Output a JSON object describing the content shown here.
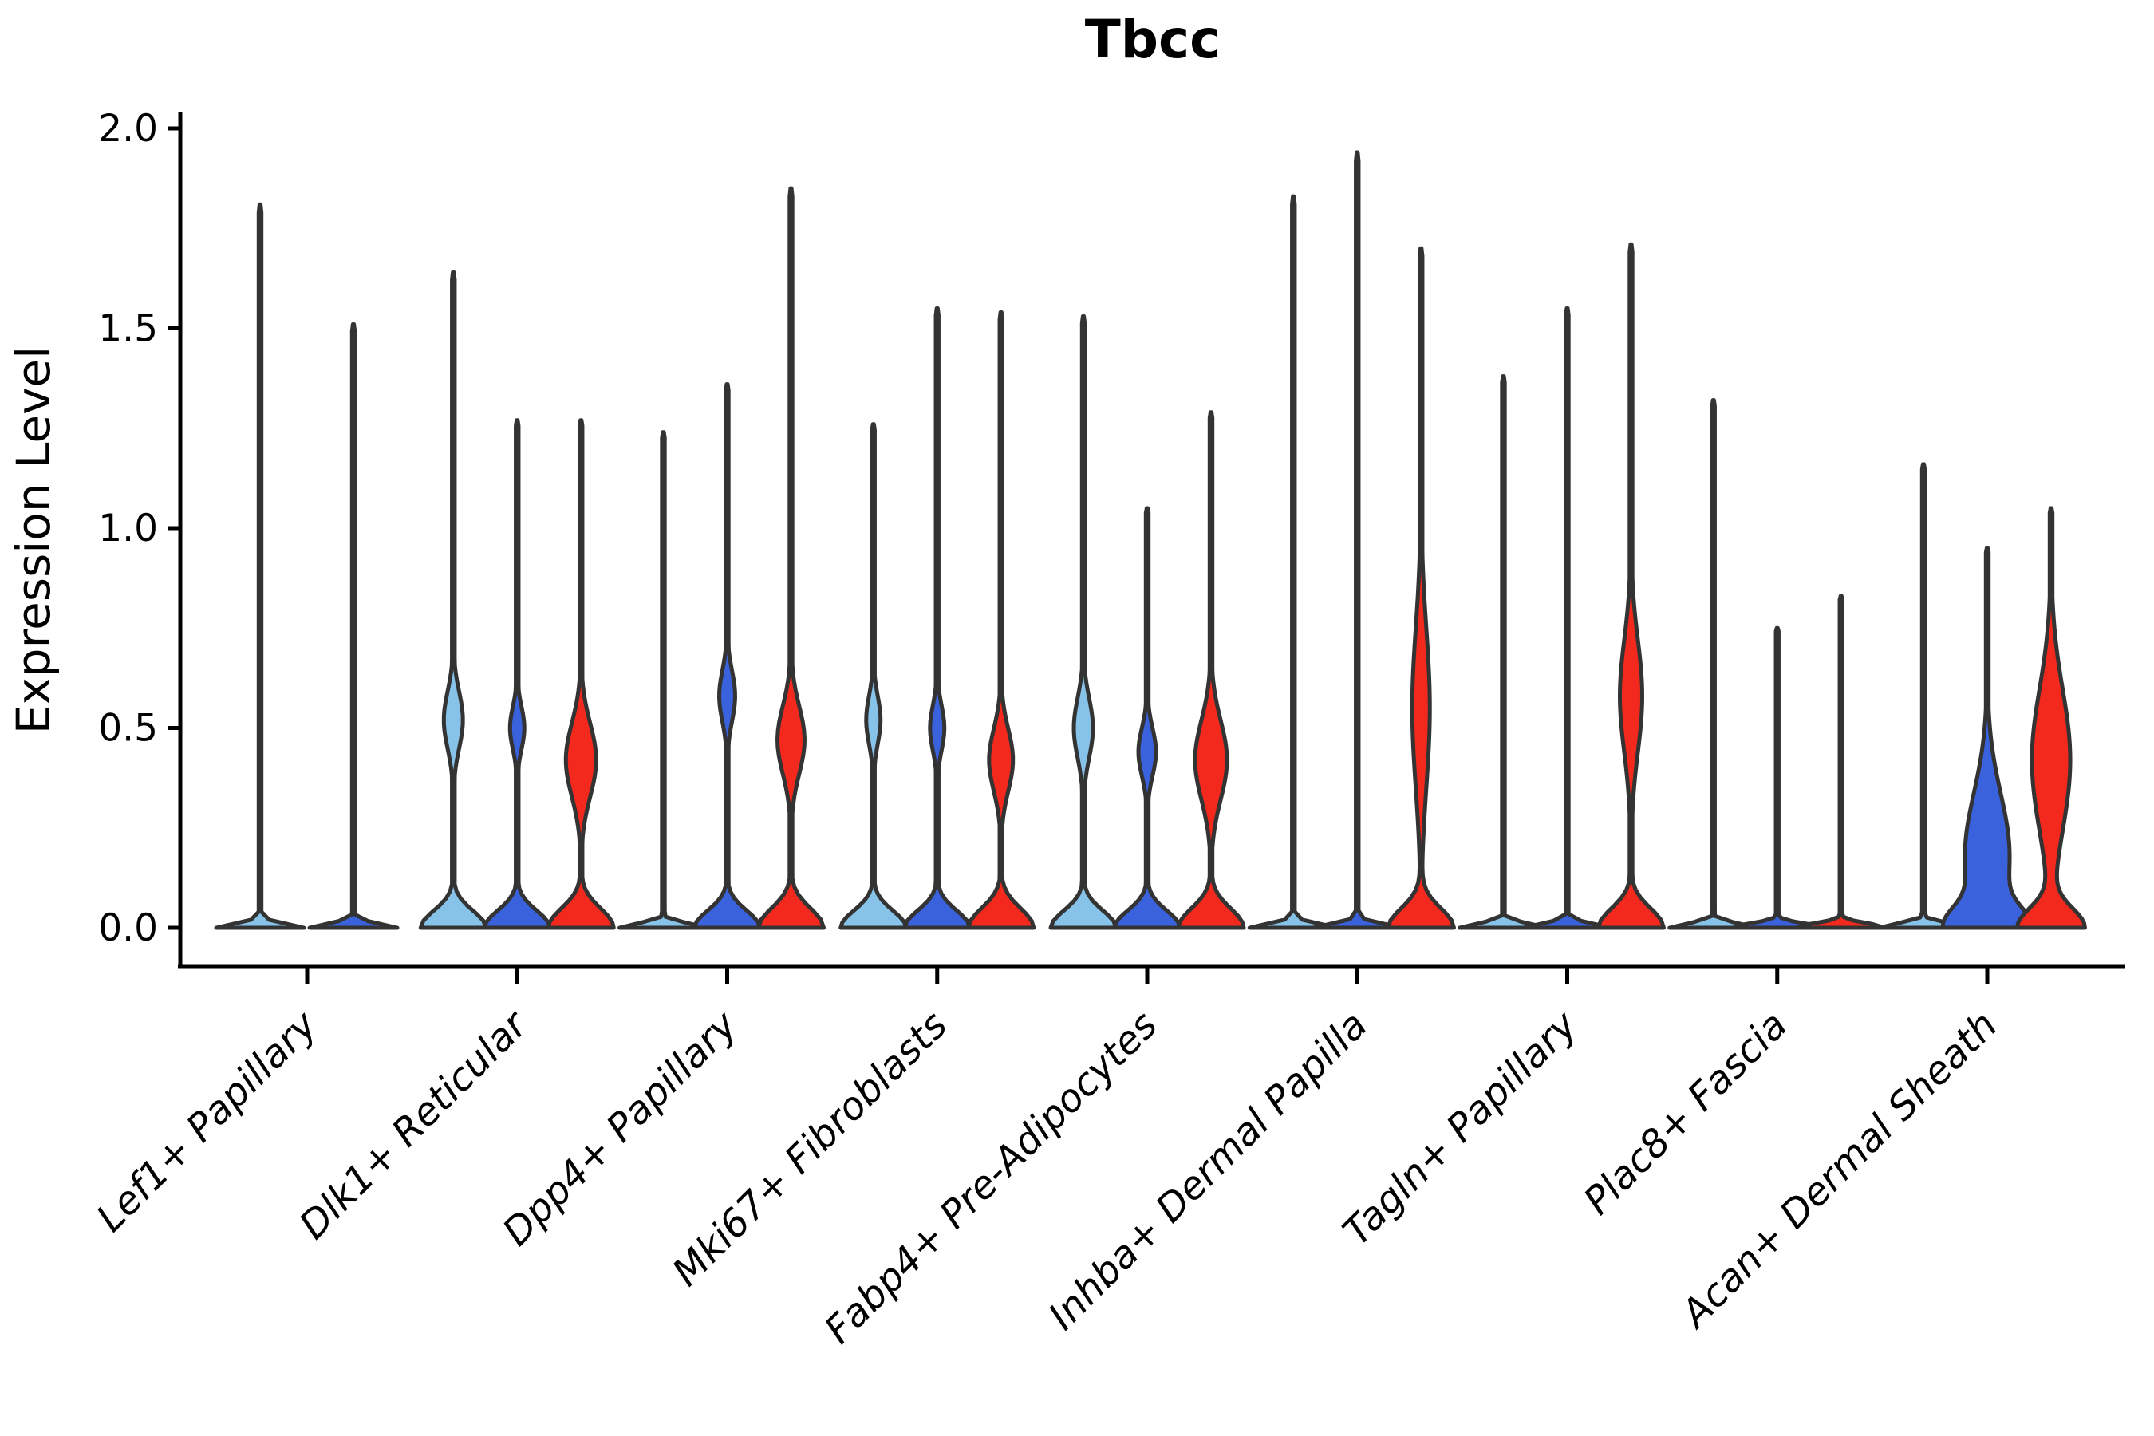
{
  "colors": {
    "light_blue": "#87C3E8",
    "dark_blue": "#3A62DC",
    "red": "#F4291E",
    "outline": "#333333",
    "axis": "#000000",
    "background": "#ffffff"
  },
  "chart_data": {
    "type": "violin",
    "title": "Tbcc",
    "xlabel": "",
    "ylabel": "Expression Level",
    "ylim": [
      0,
      2
    ],
    "yticks": [
      "0.0",
      "0.5",
      "1.0",
      "1.5",
      "2.0"
    ],
    "ytick_values": [
      0.0,
      0.5,
      1.0,
      1.5,
      2.0
    ],
    "grid": "off",
    "legend": "none",
    "categories": [
      "Lef1+ Papillary",
      "Dlk1+ Reticular",
      "Dpp4+ Papillary",
      "Mki67+ Fibroblasts",
      "Fabp4+ Pre-Adipocytes",
      "Inhba+ Dermal Papilla",
      "Tagln+ Papillary",
      "Plac8+ Fascia",
      "Acan+ Dermal Sheath"
    ],
    "groups": [
      {
        "category": "Lef1+ Papillary",
        "violins": [
          {
            "color": "light_blue",
            "max": 1.81,
            "offset": -59,
            "shape": "spike"
          },
          {
            "color": "dark_blue",
            "max": 1.51,
            "offset": 58,
            "shape": "spike"
          }
        ]
      },
      {
        "category": "Dlk1+ Reticular",
        "violins": [
          {
            "color": "light_blue",
            "max": 1.64,
            "offset": -80,
            "shape": "lens",
            "bulge": {
              "c": 0.52,
              "hw": 12,
              "s": 0.1
            }
          },
          {
            "color": "dark_blue",
            "max": 1.27,
            "offset": 0,
            "shape": "lens",
            "bulge": {
              "c": 0.5,
              "hw": 9,
              "s": 0.075
            }
          },
          {
            "color": "red",
            "max": 1.27,
            "offset": 80,
            "shape": "wide",
            "bulge": {
              "c": 0.42,
              "hw": 19,
              "s": 0.13
            }
          }
        ]
      },
      {
        "category": "Dpp4+ Papillary",
        "violins": [
          {
            "color": "light_blue",
            "max": 1.24,
            "offset": -80,
            "shape": "spike"
          },
          {
            "color": "dark_blue",
            "max": 1.36,
            "offset": 0,
            "shape": "lens",
            "bulge": {
              "c": 0.58,
              "hw": 10,
              "s": 0.09
            }
          },
          {
            "color": "red",
            "max": 1.85,
            "offset": 80,
            "shape": "wide",
            "bulge": {
              "c": 0.47,
              "hw": 17,
              "s": 0.12
            }
          }
        ]
      },
      {
        "category": "Mki67+ Fibroblasts",
        "violins": [
          {
            "color": "light_blue",
            "max": 1.26,
            "offset": -80,
            "shape": "lens",
            "bulge": {
              "c": 0.52,
              "hw": 9,
              "s": 0.085
            }
          },
          {
            "color": "dark_blue",
            "max": 1.55,
            "offset": 0,
            "shape": "lens",
            "bulge": {
              "c": 0.5,
              "hw": 9,
              "s": 0.08
            }
          },
          {
            "color": "red",
            "max": 1.54,
            "offset": 80,
            "shape": "wide",
            "bulge": {
              "c": 0.42,
              "hw": 15,
              "s": 0.11
            }
          }
        ]
      },
      {
        "category": "Fabp4+ Pre-Adipocytes",
        "violins": [
          {
            "color": "light_blue",
            "max": 1.53,
            "offset": -80,
            "shape": "lens",
            "bulge": {
              "c": 0.5,
              "hw": 12,
              "s": 0.105
            }
          },
          {
            "color": "dark_blue",
            "max": 1.05,
            "offset": 0,
            "shape": "lens",
            "bulge": {
              "c": 0.44,
              "hw": 11,
              "s": 0.085
            }
          },
          {
            "color": "red",
            "max": 1.29,
            "offset": 80,
            "shape": "wide",
            "bulge": {
              "c": 0.42,
              "hw": 20,
              "s": 0.14
            }
          }
        ]
      },
      {
        "category": "Inhba+ Dermal Papilla",
        "violins": [
          {
            "color": "light_blue",
            "max": 1.83,
            "offset": -80,
            "shape": "spike"
          },
          {
            "color": "dark_blue",
            "max": 1.94,
            "offset": 0,
            "shape": "spike"
          },
          {
            "color": "red",
            "max": 1.7,
            "offset": 80,
            "shape": "wide",
            "bulge": {
              "c": 0.55,
              "hw": 11,
              "s": 0.28
            }
          }
        ]
      },
      {
        "category": "Tagln+ Papillary",
        "violins": [
          {
            "color": "light_blue",
            "max": 1.38,
            "offset": -80,
            "shape": "spike"
          },
          {
            "color": "dark_blue",
            "max": 1.55,
            "offset": 0,
            "shape": "spike"
          },
          {
            "color": "red",
            "max": 1.71,
            "offset": 80,
            "shape": "wide",
            "bulge": {
              "c": 0.58,
              "hw": 14,
              "s": 0.2
            }
          }
        ]
      },
      {
        "category": "Plac8+ Fascia",
        "violins": [
          {
            "color": "light_blue",
            "max": 1.32,
            "offset": -80,
            "shape": "spike"
          },
          {
            "color": "dark_blue",
            "max": 0.75,
            "offset": 0,
            "shape": "spike"
          },
          {
            "color": "red",
            "max": 0.83,
            "offset": 80,
            "shape": "spike"
          }
        ]
      },
      {
        "category": "Acan+ Dermal Sheath",
        "violins": [
          {
            "color": "light_blue",
            "max": 1.16,
            "offset": -80,
            "shape": "spike"
          },
          {
            "color": "dark_blue",
            "max": 0.95,
            "offset": 0,
            "shape": "wide",
            "bulge": {
              "c": 0.18,
              "hw": 28,
              "s": 0.22
            }
          },
          {
            "color": "red",
            "max": 1.05,
            "offset": 80,
            "shape": "wide",
            "bulge": {
              "c": 0.42,
              "hw": 24,
              "s": 0.25
            }
          }
        ]
      }
    ]
  }
}
